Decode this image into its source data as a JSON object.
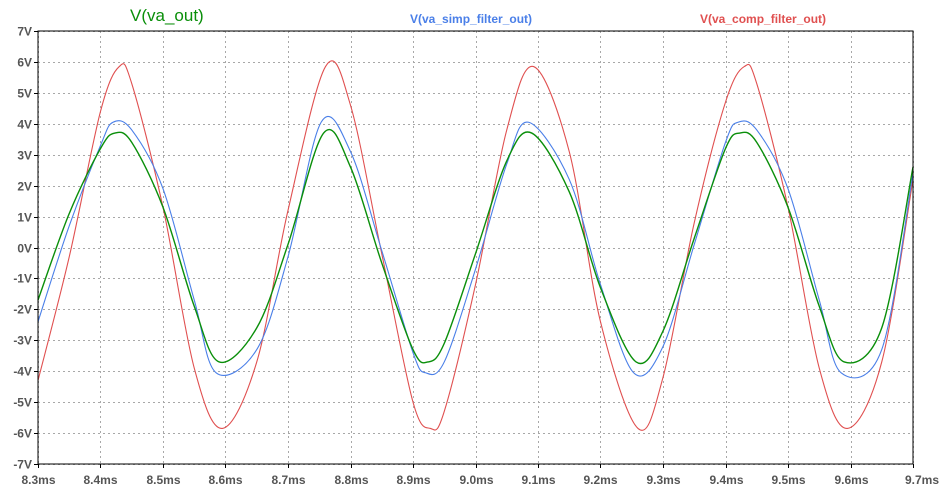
{
  "chart_data": {
    "type": "line",
    "title": "",
    "xlabel": "",
    "ylabel": "",
    "xlim": [
      8.3,
      9.7
    ],
    "ylim": [
      -7,
      7
    ],
    "grid": true,
    "x_tick_labels": [
      "8.3ms",
      "8.4ms",
      "8.5ms",
      "8.6ms",
      "8.7ms",
      "8.8ms",
      "8.9ms",
      "9.0ms",
      "9.1ms",
      "9.2ms",
      "9.3ms",
      "9.4ms",
      "9.5ms",
      "9.6ms",
      "9.7ms"
    ],
    "x_tick_values": [
      8.3,
      8.4,
      8.5,
      8.6,
      8.7,
      8.8,
      8.9,
      9.0,
      9.1,
      9.2,
      9.3,
      9.4,
      9.5,
      9.6,
      9.7
    ],
    "y_tick_labels": [
      "7V",
      "6V",
      "5V",
      "4V",
      "3V",
      "2V",
      "1V",
      "0V",
      "-1V",
      "-2V",
      "-3V",
      "-4V",
      "-5V",
      "-6V",
      "-7V"
    ],
    "y_tick_values": [
      7,
      6,
      5,
      4,
      3,
      2,
      1,
      0,
      -1,
      -2,
      -3,
      -4,
      -5,
      -6,
      -7
    ],
    "x_unit": "ms",
    "series": [
      {
        "name": "V(va_out)",
        "color": "#0a8f0a",
        "x": [
          8.3,
          8.35,
          8.4,
          8.423,
          8.45,
          8.5,
          8.55,
          8.59,
          8.65,
          8.7,
          8.757,
          8.8,
          8.85,
          8.9,
          8.924,
          8.95,
          9.0,
          9.05,
          9.09,
          9.15,
          9.2,
          9.257,
          9.3,
          9.35,
          9.4,
          9.423,
          9.45,
          9.5,
          9.55,
          9.59,
          9.65,
          9.7
        ],
        "values": [
          -1.7,
          1.1,
          3.2,
          3.7,
          3.4,
          1.3,
          -1.9,
          -3.7,
          -2.6,
          0.1,
          3.7,
          2.6,
          -0.5,
          -3.3,
          -3.7,
          -3.1,
          -0.2,
          2.8,
          3.7,
          1.8,
          -1.3,
          -3.7,
          -2.7,
          0.3,
          3.2,
          3.7,
          3.4,
          1.3,
          -1.9,
          -3.7,
          -2.6,
          2.6
        ]
      },
      {
        "name": "V(va_simp_filter_out)",
        "color": "#4a7fe8",
        "x": [
          8.3,
          8.35,
          8.4,
          8.42,
          8.45,
          8.5,
          8.55,
          8.585,
          8.65,
          8.7,
          8.753,
          8.8,
          8.85,
          8.9,
          8.92,
          8.95,
          9.0,
          9.05,
          9.085,
          9.15,
          9.2,
          9.253,
          9.3,
          9.35,
          9.4,
          9.42,
          9.45,
          9.5,
          9.55,
          9.585,
          9.65,
          9.7
        ],
        "values": [
          -2.4,
          0.7,
          3.3,
          4.05,
          3.8,
          1.9,
          -1.7,
          -4.05,
          -3.3,
          -0.3,
          4.05,
          3.1,
          -0.1,
          -3.4,
          -4.05,
          -3.7,
          -0.7,
          2.7,
          4.05,
          2.2,
          -1.2,
          -4.05,
          -3.2,
          0.1,
          3.4,
          4.05,
          3.8,
          1.9,
          -1.7,
          -4.05,
          -3.3,
          2.4
        ]
      },
      {
        "name": "V(va_comp_filter_out)",
        "color": "#e05050",
        "x": [
          8.3,
          8.35,
          8.4,
          8.43,
          8.45,
          8.5,
          8.55,
          8.595,
          8.65,
          8.7,
          8.76,
          8.8,
          8.85,
          8.9,
          8.928,
          8.95,
          9.0,
          9.05,
          9.093,
          9.15,
          9.2,
          9.26,
          9.3,
          9.35,
          9.4,
          9.43,
          9.45,
          9.5,
          9.55,
          9.595,
          9.65,
          9.7
        ],
        "values": [
          -4.3,
          -0.3,
          4.4,
          5.85,
          5.3,
          1.3,
          -3.9,
          -5.85,
          -3.7,
          1.2,
          5.85,
          4.6,
          -0.2,
          -5.0,
          -5.85,
          -5.3,
          -1.2,
          3.8,
          5.85,
          3.1,
          -2.4,
          -5.85,
          -4.2,
          0.8,
          4.7,
          5.85,
          5.3,
          1.3,
          -3.9,
          -5.85,
          -3.7,
          2.2
        ]
      }
    ]
  }
}
